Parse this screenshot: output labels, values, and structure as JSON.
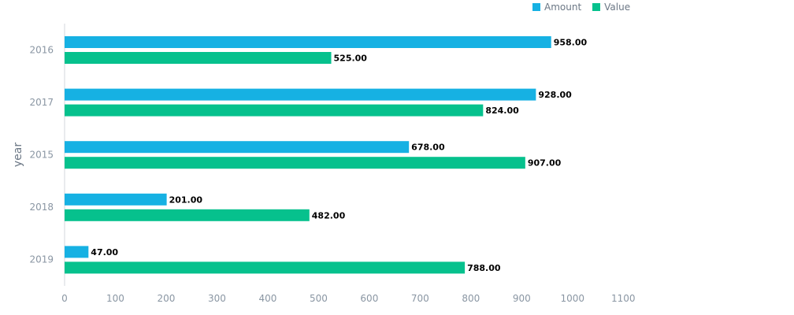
{
  "chart_data": {
    "type": "bar",
    "orientation": "horizontal",
    "ylabel": "year",
    "xlabel": "",
    "categories": [
      "2016",
      "2017",
      "2015",
      "2018",
      "2019"
    ],
    "series": [
      {
        "name": "Amount",
        "color": "#16b1e3",
        "values": [
          958,
          928,
          678,
          201,
          47
        ],
        "labels": [
          "958.00",
          "928.00",
          "678.00",
          "201.00",
          "47.00"
        ]
      },
      {
        "name": "Value",
        "color": "#06c18d",
        "values": [
          525,
          824,
          907,
          482,
          788
        ],
        "labels": [
          "525.00",
          "824.00",
          "907.00",
          "482.00",
          "788.00"
        ]
      }
    ],
    "xlim": [
      0,
      1100
    ],
    "xticks": [
      "0",
      "100",
      "200",
      "300",
      "400",
      "500",
      "600",
      "700",
      "800",
      "900",
      "1000",
      "1100"
    ],
    "grid": false,
    "legend_position": "top"
  }
}
